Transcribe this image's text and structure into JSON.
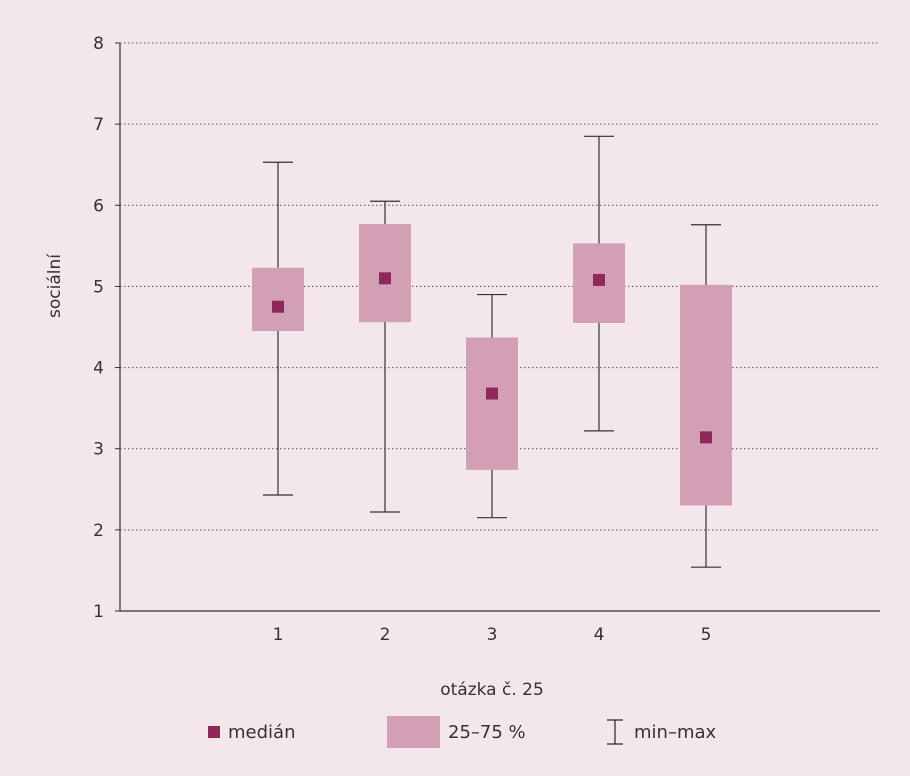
{
  "chart_data": {
    "type": "boxplot",
    "xlabel": "otázka č. 25",
    "ylabel": "sociální",
    "ylim": [
      1,
      8
    ],
    "yticks": [
      1,
      2,
      3,
      4,
      5,
      6,
      7,
      8
    ],
    "grid": "horizontal dotted",
    "categories": [
      "1",
      "2",
      "3",
      "4",
      "5"
    ],
    "boxes": [
      {
        "category": "1",
        "min": 2.43,
        "q1": 4.45,
        "median": 4.75,
        "q3": 5.23,
        "max": 6.53
      },
      {
        "category": "2",
        "min": 2.22,
        "q1": 4.56,
        "median": 5.1,
        "q3": 5.77,
        "max": 6.05
      },
      {
        "category": "3",
        "min": 2.15,
        "q1": 2.74,
        "median": 3.68,
        "q3": 4.37,
        "max": 4.9
      },
      {
        "category": "4",
        "min": 3.22,
        "q1": 4.55,
        "median": 5.08,
        "q3": 5.53,
        "max": 6.85
      },
      {
        "category": "5",
        "min": 1.54,
        "q1": 2.3,
        "median": 3.14,
        "q3": 5.02,
        "max": 5.76
      }
    ],
    "colors": {
      "box": "#d29fb4",
      "median": "#8e2a5a",
      "whisker": "#333333",
      "background": "#f3e7ec"
    },
    "legend": {
      "placement": "bottom",
      "median_label": "medián",
      "box_label": "25–75 %",
      "range_label": "min–max"
    }
  }
}
